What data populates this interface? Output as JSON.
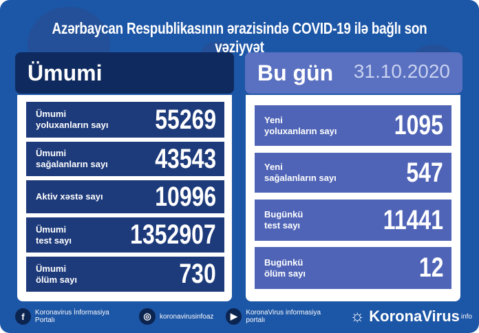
{
  "title": "Azərbaycan Respublikasının ərazisində COVID-19 ilə bağlı son vəziyyət",
  "left": {
    "header": "Ümumi",
    "rows": [
      {
        "label1": "Ümumi",
        "label2": "yoluxanların sayı",
        "value": "55269"
      },
      {
        "label1": "Ümumi",
        "label2": "sağalanların sayı",
        "value": "43543"
      },
      {
        "label1": "Aktiv xəstə sayı",
        "label2": "",
        "value": "10996"
      },
      {
        "label1": "Ümumi",
        "label2": "test sayı",
        "value": "1352907"
      },
      {
        "label1": "Ümumi",
        "label2": "ölüm sayı",
        "value": "730"
      }
    ]
  },
  "right": {
    "header": "Bu gün",
    "date": "31.10.2020",
    "rows": [
      {
        "label1": "Yeni",
        "label2": "yoluxanların sayı",
        "value": "1095"
      },
      {
        "label1": "Yeni",
        "label2": "sağalanların sayı",
        "value": "547"
      },
      {
        "label1": "Bugünkü",
        "label2": "test sayı",
        "value": "11441"
      },
      {
        "label1": "Bugünkü",
        "label2": "ölüm sayı",
        "value": "12"
      }
    ]
  },
  "footer": {
    "facebook": "Koronavirus İnformasiya Portalı",
    "instagram": "koronavirusinfoaz",
    "youtube": "KoronaVirus informasiya portalı",
    "brand": "KoronaVirus",
    "brand_sup": "info"
  },
  "colors": {
    "background": "#1c56a6",
    "left_rows": "#1d3a7a",
    "right_rows": "#4f64b6"
  }
}
